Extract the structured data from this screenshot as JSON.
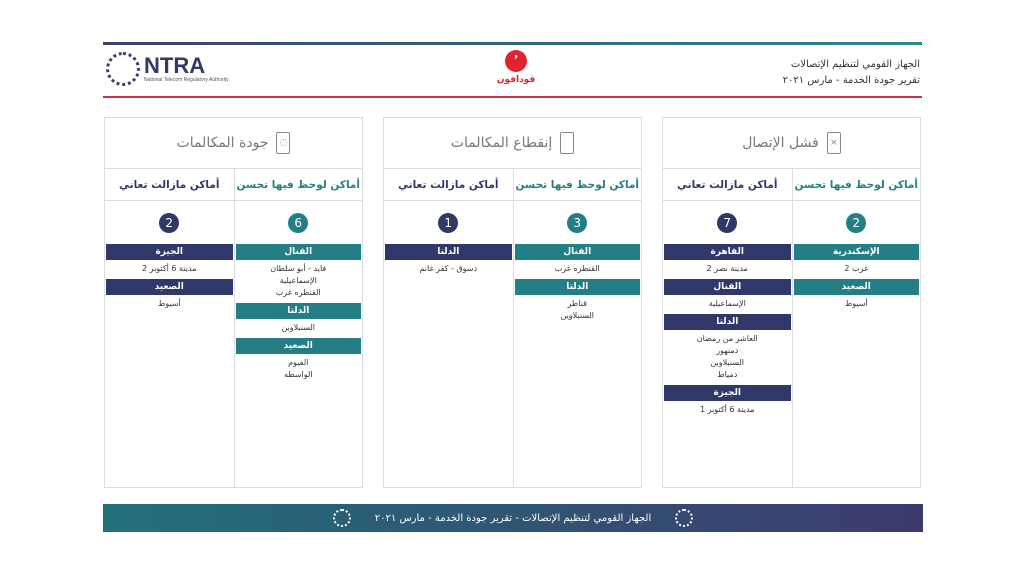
{
  "header": {
    "org": "الجهاز القومي لتنظيم الإتصالات",
    "report": "تقرير جودة الخدمة - مارس ٢٠٢١",
    "logo_text": "NTRA",
    "logo_sub": "National Telecom Regulatory Authority",
    "operator": "فودافون"
  },
  "colors": {
    "improved": "#237f85",
    "suffering": "#2f3868",
    "accent": "#e0242f"
  },
  "panels": [
    {
      "title": "فشل الإتصال",
      "icon": "phone-x-icon",
      "improved": {
        "label": "أماكن لوحظ فيها تحسن",
        "count": "2",
        "groups": [
          {
            "region": "الإسكندرية",
            "items": [
              "غرب 2"
            ]
          },
          {
            "region": "الصعيد",
            "items": [
              "أسيوط"
            ]
          }
        ]
      },
      "suffering": {
        "label": "أماكن مازالت تعاني",
        "count": "7",
        "groups": [
          {
            "region": "القاهرة",
            "items": [
              "مدينة نصر 2"
            ]
          },
          {
            "region": "القنال",
            "items": [
              "الإسماعيلية"
            ]
          },
          {
            "region": "الدلتا",
            "items": [
              "العاشر من رمضان",
              "دمنهور",
              "السنبلاوين",
              "دمياط"
            ]
          },
          {
            "region": "الجيزة",
            "items": [
              "مدينة 6 أكتوبر 1"
            ]
          }
        ]
      }
    },
    {
      "title": "إنقطاع المكالمات",
      "icon": "phone-drop-icon",
      "improved": {
        "label": "أماكن لوحظ فيها تحسن",
        "count": "3",
        "groups": [
          {
            "region": "القنال",
            "items": [
              "القنطره غرب"
            ]
          },
          {
            "region": "الدلتا",
            "items": [
              "قناطر",
              "السنبلاوين"
            ]
          }
        ]
      },
      "suffering": {
        "label": "أماكن مازالت تعاني",
        "count": "1",
        "groups": [
          {
            "region": "الدلتا",
            "items": [
              "دسوق - كفر غانم"
            ]
          }
        ]
      }
    },
    {
      "title": "جودة المكالمات",
      "icon": "phone-quality-icon",
      "improved": {
        "label": "أماكن لوحظ فيها تحسن",
        "count": "6",
        "groups": [
          {
            "region": "القنال",
            "items": [
              "فايد - أبو سلطان",
              "الإسماعيلية",
              "القنطره غرب"
            ]
          },
          {
            "region": "الدلتا",
            "items": [
              "السنبلاوين"
            ]
          },
          {
            "region": "الصعيد",
            "items": [
              "الفيوم",
              "الواسطه"
            ]
          }
        ]
      },
      "suffering": {
        "label": "أماكن مازالت تعاني",
        "count": "2",
        "groups": [
          {
            "region": "الجيزة",
            "items": [
              "مدينة 6 أكتوبر 2"
            ]
          },
          {
            "region": "الصعيد",
            "items": [
              "أسيوط"
            ]
          }
        ]
      }
    }
  ],
  "footer": {
    "text": "الجهاز القومي لتنظيم الإتصالات - تقرير جودة الخدمة - مارس ٢٠٢١"
  }
}
